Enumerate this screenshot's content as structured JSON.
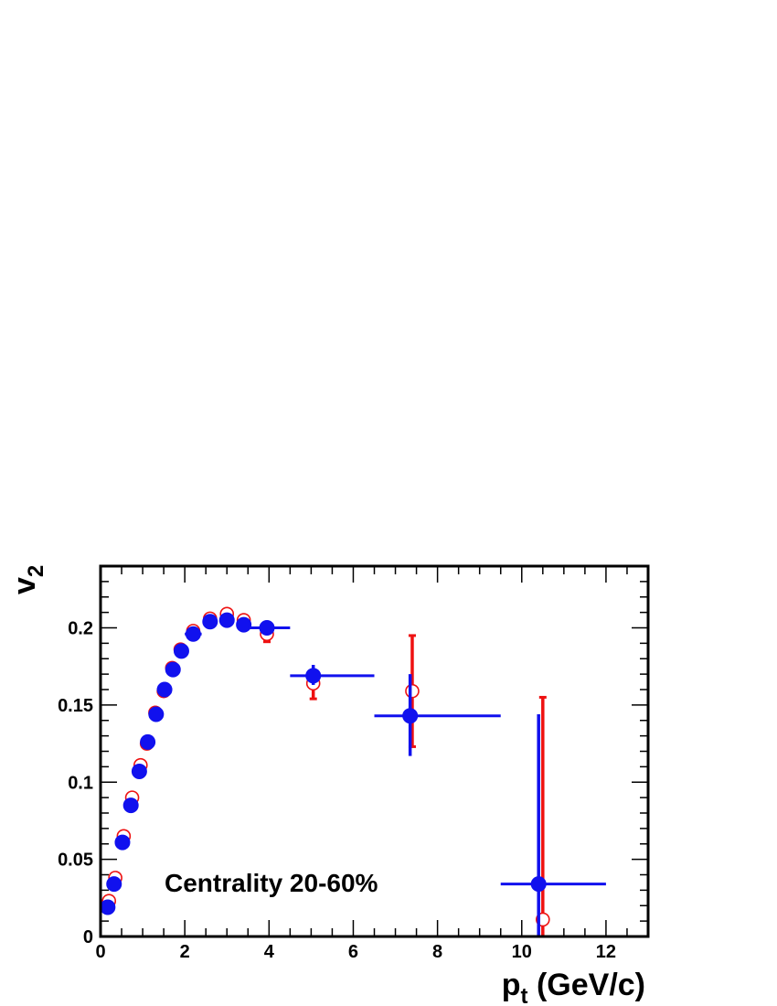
{
  "chart_data": {
    "type": "scatter",
    "title": "",
    "xlabel": {
      "main": "p",
      "sub": "t",
      "rest": " (GeV/c)"
    },
    "ylabel": {
      "main": "v",
      "sub": "2"
    },
    "xlim": [
      0,
      13
    ],
    "ylim": [
      0,
      0.24
    ],
    "xticks": [
      {
        "value": 0,
        "label": "0"
      },
      {
        "value": 2,
        "label": "2"
      },
      {
        "value": 4,
        "label": "4"
      },
      {
        "value": 6,
        "label": "6"
      },
      {
        "value": 8,
        "label": "8"
      },
      {
        "value": 10,
        "label": "10"
      },
      {
        "value": 12,
        "label": "12"
      }
    ],
    "yticks": [
      {
        "value": 0,
        "label": "0"
      },
      {
        "value": 0.05,
        "label": "0.05"
      },
      {
        "value": 0.1,
        "label": "0.1"
      },
      {
        "value": 0.15,
        "label": "0.15"
      },
      {
        "value": 0.2,
        "label": "0.2"
      }
    ],
    "annotation": "Centrality 20-60%",
    "grid": false,
    "series": [
      {
        "marker": "open-circle",
        "color": "#ee1111",
        "points": [
          {
            "x": 0.2,
            "y": 0.023
          },
          {
            "x": 0.35,
            "y": 0.038
          },
          {
            "x": 0.55,
            "y": 0.065
          },
          {
            "x": 0.75,
            "y": 0.09
          },
          {
            "x": 0.95,
            "y": 0.111
          },
          {
            "x": 1.1,
            "y": 0.125
          },
          {
            "x": 1.3,
            "y": 0.145
          },
          {
            "x": 1.5,
            "y": 0.159
          },
          {
            "x": 1.7,
            "y": 0.174
          },
          {
            "x": 1.9,
            "y": 0.186
          },
          {
            "x": 2.2,
            "y": 0.198
          },
          {
            "x": 2.6,
            "y": 0.206
          },
          {
            "x": 3.0,
            "y": 0.209
          },
          {
            "x": 3.4,
            "y": 0.205
          },
          {
            "x": 3.95,
            "y": 0.196,
            "yerr_lo": 0.005,
            "yerr_hi": 0.003
          },
          {
            "x": 5.05,
            "y": 0.164,
            "yerr_lo": 0.01,
            "yerr_hi": 0.006
          },
          {
            "x": 7.4,
            "y": 0.159,
            "yerr_lo": 0.036,
            "yerr_hi": 0.036
          },
          {
            "x": 10.5,
            "y": 0.011,
            "yerr_lo": 0.011,
            "yerr_hi": 0.144
          }
        ]
      },
      {
        "marker": "filled-circle",
        "color": "#1111ee",
        "points": [
          {
            "x": 0.17,
            "y": 0.019
          },
          {
            "x": 0.32,
            "y": 0.034
          },
          {
            "x": 0.52,
            "y": 0.061
          },
          {
            "x": 0.72,
            "y": 0.085
          },
          {
            "x": 0.92,
            "y": 0.107
          },
          {
            "x": 1.12,
            "y": 0.126
          },
          {
            "x": 1.32,
            "y": 0.144
          },
          {
            "x": 1.52,
            "y": 0.16
          },
          {
            "x": 1.72,
            "y": 0.173
          },
          {
            "x": 1.92,
            "y": 0.185
          },
          {
            "x": 2.2,
            "y": 0.196,
            "xerr": 0.2
          },
          {
            "x": 2.6,
            "y": 0.204
          },
          {
            "x": 3.0,
            "y": 0.205
          },
          {
            "x": 3.4,
            "y": 0.202
          },
          {
            "x": 3.95,
            "y": 0.2,
            "xerr_lo": 0.45,
            "xerr_hi": 0.55
          },
          {
            "x": 5.05,
            "y": 0.169,
            "xerr_lo": 0.55,
            "xerr_hi": 1.45,
            "yerr_lo": 0.006,
            "yerr_hi": 0.007
          },
          {
            "x": 7.35,
            "y": 0.143,
            "xerr_lo": 0.85,
            "xerr_hi": 2.15,
            "yerr_lo": 0.026,
            "yerr_hi": 0.027
          },
          {
            "x": 10.4,
            "y": 0.034,
            "xerr_lo": 0.9,
            "xerr_hi": 1.6,
            "yerr_lo": 0.034,
            "yerr_hi": 0.11
          }
        ]
      }
    ]
  }
}
